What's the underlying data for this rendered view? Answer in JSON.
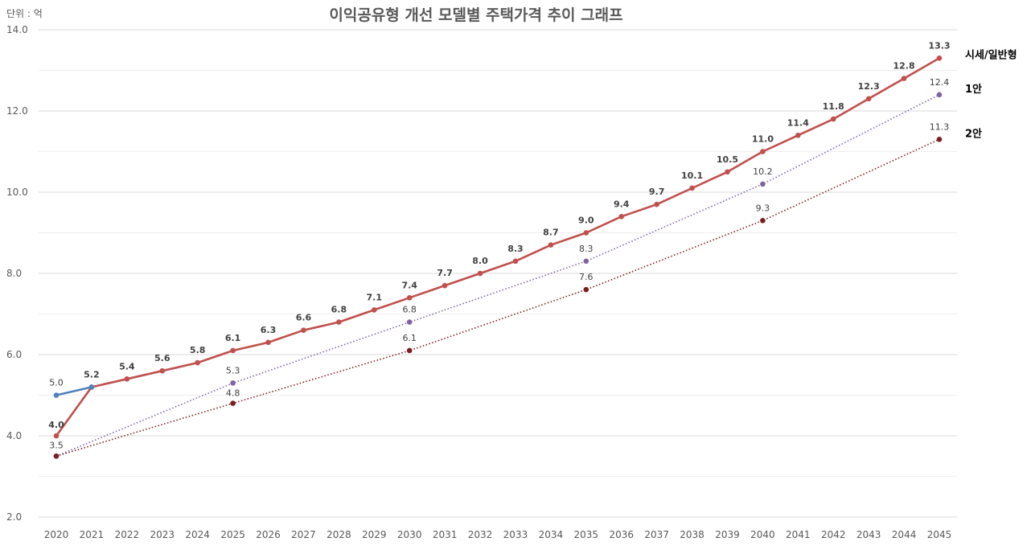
{
  "chart_data": {
    "type": "line",
    "title": "이익공유형 개선 모델별 주택가격 추이 그래프",
    "unit_label": "단위 : 억",
    "ylim": [
      2.0,
      14.0
    ],
    "y_ticks": [
      "2.0",
      "4.0",
      "6.0",
      "8.0",
      "10.0",
      "12.0",
      "14.0"
    ],
    "grid": true,
    "categories": [
      "2020",
      "2021",
      "2022",
      "2023",
      "2024",
      "2025",
      "2026",
      "2027",
      "2028",
      "2029",
      "2030",
      "2031",
      "2032",
      "2033",
      "2034",
      "2035",
      "2036",
      "2037",
      "2038",
      "2039",
      "2040",
      "2041",
      "2042",
      "2043",
      "2044",
      "2045"
    ],
    "series": [
      {
        "name": "시세/일반형",
        "color": "#c0504d",
        "style": "solid",
        "points": [
          {
            "x": "2020",
            "y": 4.0,
            "label": "4.0"
          },
          {
            "x": "2021",
            "y": 5.2,
            "label": "5.2"
          },
          {
            "x": "2022",
            "y": 5.4,
            "label": "5.4"
          },
          {
            "x": "2023",
            "y": 5.6,
            "label": "5.6"
          },
          {
            "x": "2024",
            "y": 5.8,
            "label": "5.8"
          },
          {
            "x": "2025",
            "y": 6.1,
            "label": "6.1"
          },
          {
            "x": "2026",
            "y": 6.3,
            "label": "6.3"
          },
          {
            "x": "2027",
            "y": 6.6,
            "label": "6.6"
          },
          {
            "x": "2028",
            "y": 6.8,
            "label": "6.8"
          },
          {
            "x": "2029",
            "y": 7.1,
            "label": "7.1"
          },
          {
            "x": "2030",
            "y": 7.4,
            "label": "7.4"
          },
          {
            "x": "2031",
            "y": 7.7,
            "label": "7.7"
          },
          {
            "x": "2032",
            "y": 8.0,
            "label": "8.0"
          },
          {
            "x": "2033",
            "y": 8.3,
            "label": "8.3"
          },
          {
            "x": "2034",
            "y": 8.7,
            "label": "8.7"
          },
          {
            "x": "2035",
            "y": 9.0,
            "label": "9.0"
          },
          {
            "x": "2036",
            "y": 9.4,
            "label": "9.4"
          },
          {
            "x": "2037",
            "y": 9.7,
            "label": "9.7"
          },
          {
            "x": "2038",
            "y": 10.1,
            "label": "10.1"
          },
          {
            "x": "2039",
            "y": 10.5,
            "label": "10.5"
          },
          {
            "x": "2040",
            "y": 11.0,
            "label": "11.0"
          },
          {
            "x": "2041",
            "y": 11.4,
            "label": "11.4"
          },
          {
            "x": "2042",
            "y": 11.8,
            "label": "11.8"
          },
          {
            "x": "2043",
            "y": 12.3,
            "label": "12.3"
          },
          {
            "x": "2044",
            "y": 12.8,
            "label": "12.8"
          },
          {
            "x": "2045",
            "y": 13.3,
            "label": "13.3"
          }
        ]
      },
      {
        "name": "",
        "color": "#4f81bd",
        "style": "solid",
        "points": [
          {
            "x": "2020",
            "y": 5.0,
            "label": "5.0"
          },
          {
            "x": "2021",
            "y": 5.2,
            "label": ""
          }
        ]
      },
      {
        "name": "1안",
        "color": "#8064a2",
        "style": "dotted",
        "points": [
          {
            "x": "2020",
            "y": 3.5,
            "label": ""
          },
          {
            "x": "2025",
            "y": 5.3,
            "label": "5.3"
          },
          {
            "x": "2030",
            "y": 6.8,
            "label": "6.8"
          },
          {
            "x": "2035",
            "y": 8.3,
            "label": "8.3"
          },
          {
            "x": "2040",
            "y": 10.2,
            "label": "10.2"
          },
          {
            "x": "2045",
            "y": 12.4,
            "label": "12.4"
          }
        ]
      },
      {
        "name": "2안",
        "color": "#7b1f1f",
        "style": "dotted",
        "points": [
          {
            "x": "2020",
            "y": 3.5,
            "label": "3.5"
          },
          {
            "x": "2025",
            "y": 4.8,
            "label": "4.8"
          },
          {
            "x": "2030",
            "y": 6.1,
            "label": "6.1"
          },
          {
            "x": "2035",
            "y": 7.6,
            "label": "7.6"
          },
          {
            "x": "2040",
            "y": 9.3,
            "label": "9.3"
          },
          {
            "x": "2045",
            "y": 11.3,
            "label": "11.3"
          }
        ]
      }
    ]
  }
}
